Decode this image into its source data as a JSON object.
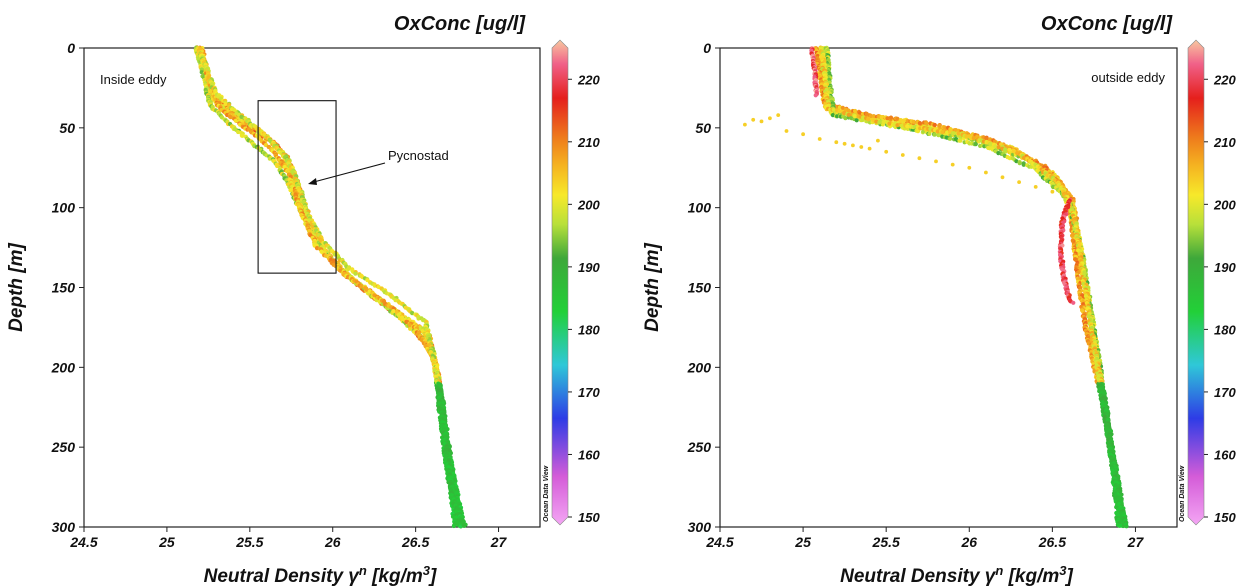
{
  "chart_data": [
    {
      "type": "scatter",
      "panel": "left",
      "title": "OxConc [ug/l]",
      "xlabel_main": "Neutral Density γ",
      "xlabel_sup1": "n",
      "xlabel_mid": " [kg/m",
      "xlabel_sup2": "3",
      "xlabel_end": "]",
      "ylabel": "Depth [m]",
      "annotation": "Inside eddy",
      "pycnostad_label": "Pycnostad",
      "pycnostad_box": {
        "x": [
          25.55,
          26.02
        ],
        "y": [
          33,
          141
        ]
      },
      "xlim": [
        24.5,
        27.25
      ],
      "ylim": [
        0,
        300
      ],
      "y_inverted": true,
      "xticks": [
        "24.5",
        "25",
        "25.5",
        "26",
        "26.5",
        "27"
      ],
      "yticks": [
        "0",
        "50",
        "100",
        "150",
        "200",
        "250",
        "300"
      ],
      "colorbar": {
        "label": "OxConc [ug/l]",
        "range": [
          150,
          225
        ],
        "ticks": [
          "150",
          "160",
          "170",
          "180",
          "190",
          "200",
          "210",
          "220"
        ]
      },
      "watermark": "Ocean Data View",
      "profiles": [
        {
          "oxygen": 206,
          "points": [
            [
              25.18,
              0
            ],
            [
              25.22,
              12
            ],
            [
              25.28,
              30
            ],
            [
              25.45,
              45
            ],
            [
              25.62,
              57
            ],
            [
              25.72,
              68
            ],
            [
              25.78,
              82
            ],
            [
              25.82,
              98
            ],
            [
              25.88,
              115
            ],
            [
              25.98,
              132
            ],
            [
              26.15,
              148
            ],
            [
              26.38,
              165
            ],
            [
              26.58,
              180
            ],
            [
              26.64,
              210
            ],
            [
              26.68,
              250
            ],
            [
              26.72,
              280
            ],
            [
              26.76,
              300
            ]
          ]
        },
        {
          "oxygen": 209,
          "points": [
            [
              25.19,
              0
            ],
            [
              25.22,
              14
            ],
            [
              25.3,
              35
            ],
            [
              25.48,
              48
            ],
            [
              25.65,
              60
            ],
            [
              25.74,
              72
            ],
            [
              25.8,
              90
            ],
            [
              25.84,
              104
            ],
            [
              25.92,
              122
            ],
            [
              26.05,
              140
            ],
            [
              26.25,
              156
            ],
            [
              26.45,
              172
            ],
            [
              26.6,
              190
            ],
            [
              26.65,
              215
            ],
            [
              26.69,
              255
            ],
            [
              26.74,
              300
            ]
          ]
        },
        {
          "oxygen": 201,
          "points": [
            [
              25.2,
              0
            ],
            [
              25.24,
              18
            ],
            [
              25.27,
              32
            ],
            [
              25.4,
              42
            ],
            [
              25.58,
              54
            ],
            [
              25.7,
              66
            ],
            [
              25.76,
              80
            ],
            [
              25.8,
              96
            ],
            [
              25.86,
              112
            ],
            [
              25.96,
              128
            ],
            [
              26.12,
              145
            ],
            [
              26.32,
              160
            ],
            [
              26.54,
              176
            ],
            [
              26.62,
              200
            ],
            [
              26.66,
              240
            ],
            [
              26.7,
              270
            ],
            [
              26.78,
              300
            ]
          ]
        },
        {
          "oxygen": 197,
          "points": [
            [
              25.18,
              0
            ],
            [
              25.22,
              16
            ],
            [
              25.26,
              36
            ],
            [
              25.38,
              48
            ],
            [
              25.52,
              60
            ],
            [
              25.66,
              72
            ],
            [
              25.74,
              86
            ],
            [
              25.8,
              100
            ],
            [
              25.88,
              118
            ],
            [
              26.02,
              136
            ],
            [
              26.2,
              152
            ],
            [
              26.42,
              170
            ],
            [
              26.6,
              188
            ],
            [
              26.66,
              220
            ],
            [
              26.7,
              260
            ],
            [
              26.77,
              300
            ]
          ]
        },
        {
          "oxygen": 204,
          "points": [
            [
              25.21,
              0
            ],
            [
              25.25,
              20
            ],
            [
              25.32,
              38
            ],
            [
              25.5,
              52
            ],
            [
              25.64,
              64
            ],
            [
              25.72,
              76
            ],
            [
              25.78,
              92
            ],
            [
              25.83,
              108
            ],
            [
              25.9,
              124
            ],
            [
              26.08,
              142
            ],
            [
              26.3,
              158
            ],
            [
              26.5,
              176
            ],
            [
              26.62,
              196
            ],
            [
              26.67,
              230
            ],
            [
              26.72,
              265
            ],
            [
              26.79,
              300
            ]
          ]
        },
        {
          "oxygen": 199,
          "points": [
            [
              25.19,
              0
            ],
            [
              25.23,
              10
            ],
            [
              25.29,
              28
            ],
            [
              25.42,
              40
            ],
            [
              25.6,
              55
            ],
            [
              25.73,
              70
            ],
            [
              25.8,
              88
            ],
            [
              25.85,
              104
            ],
            [
              25.93,
              120
            ],
            [
              26.1,
              138
            ],
            [
              26.34,
              154
            ],
            [
              26.56,
              172
            ],
            [
              26.63,
              205
            ],
            [
              26.68,
              245
            ],
            [
              26.73,
              285
            ],
            [
              26.8,
              300
            ]
          ]
        }
      ],
      "deep_oxygen": 185
    },
    {
      "type": "scatter",
      "panel": "right",
      "title": "OxConc [ug/l]",
      "xlabel_main": "Neutral Density γ",
      "xlabel_sup1": "n",
      "xlabel_mid": " [kg/m",
      "xlabel_sup2": "3",
      "xlabel_end": "]",
      "ylabel": "Depth [m]",
      "annotation": "outside eddy",
      "xlim": [
        24.5,
        27.25
      ],
      "ylim": [
        0,
        300
      ],
      "y_inverted": true,
      "xticks": [
        "24.5",
        "25",
        "25.5",
        "26",
        "26.5",
        "27"
      ],
      "yticks": [
        "0",
        "50",
        "100",
        "150",
        "200",
        "250",
        "300"
      ],
      "colorbar": {
        "label": "OxConc [ug/l]",
        "range": [
          150,
          225
        ],
        "ticks": [
          "150",
          "160",
          "170",
          "180",
          "190",
          "200",
          "210",
          "220"
        ]
      },
      "watermark": "Ocean Data View",
      "profiles": [
        {
          "oxygen": 203,
          "points": [
            [
              25.1,
              0
            ],
            [
              25.12,
              20
            ],
            [
              25.14,
              38
            ],
            [
              25.5,
              44
            ],
            [
              25.9,
              52
            ],
            [
              26.25,
              62
            ],
            [
              26.5,
              78
            ],
            [
              26.62,
              95
            ],
            [
              26.66,
              120
            ],
            [
              26.72,
              160
            ],
            [
              26.78,
              200
            ],
            [
              26.84,
              240
            ],
            [
              26.88,
              270
            ],
            [
              26.93,
              300
            ]
          ]
        },
        {
          "oxygen": 198,
          "points": [
            [
              25.12,
              0
            ],
            [
              25.14,
              25
            ],
            [
              25.16,
              40
            ],
            [
              25.6,
              48
            ],
            [
              26.05,
              58
            ],
            [
              26.35,
              70
            ],
            [
              26.56,
              88
            ],
            [
              26.64,
              110
            ],
            [
              26.7,
              150
            ],
            [
              26.76,
              190
            ],
            [
              26.82,
              230
            ],
            [
              26.87,
              265
            ],
            [
              26.92,
              300
            ]
          ]
        },
        {
          "oxygen": 206,
          "points": [
            [
              25.08,
              0
            ],
            [
              25.1,
              15
            ],
            [
              25.13,
              35
            ],
            [
              25.4,
              42
            ],
            [
              25.8,
              48
            ],
            [
              26.15,
              58
            ],
            [
              26.45,
              74
            ],
            [
              26.6,
              92
            ],
            [
              26.64,
              130
            ],
            [
              26.7,
              175
            ],
            [
              26.8,
              220
            ],
            [
              26.86,
              260
            ],
            [
              26.9,
              300
            ]
          ]
        },
        {
          "oxygen": 195,
          "points": [
            [
              25.14,
              0
            ],
            [
              25.16,
              22
            ],
            [
              25.18,
              42
            ],
            [
              25.7,
              52
            ],
            [
              26.1,
              62
            ],
            [
              26.4,
              76
            ],
            [
              26.6,
              95
            ],
            [
              26.68,
              130
            ],
            [
              26.74,
              170
            ],
            [
              26.8,
              210
            ],
            [
              26.86,
              250
            ],
            [
              26.94,
              300
            ]
          ]
        },
        {
          "oxygen": 201,
          "points": [
            [
              25.11,
              0
            ],
            [
              25.13,
              18
            ],
            [
              25.15,
              38
            ],
            [
              25.45,
              46
            ],
            [
              25.95,
              54
            ],
            [
              26.3,
              66
            ],
            [
              26.54,
              84
            ],
            [
              26.63,
              105
            ],
            [
              26.69,
              145
            ],
            [
              26.75,
              185
            ],
            [
              26.83,
              235
            ],
            [
              26.89,
              280
            ],
            [
              26.95,
              300
            ]
          ]
        }
      ],
      "red_segment": {
        "oxygen": 218,
        "points": [
          [
            26.6,
            95
          ],
          [
            26.56,
            110
          ],
          [
            26.55,
            130
          ],
          [
            26.58,
            150
          ],
          [
            26.62,
            160
          ]
        ]
      },
      "top_red": {
        "oxygen": 220,
        "points": [
          [
            25.05,
            0
          ],
          [
            25.07,
            15
          ],
          [
            25.08,
            30
          ]
        ]
      },
      "outliers": [
        [
          24.65,
          48
        ],
        [
          24.7,
          45
        ],
        [
          24.75,
          46
        ],
        [
          24.8,
          44
        ],
        [
          24.85,
          42
        ],
        [
          24.9,
          52
        ],
        [
          25.0,
          54
        ],
        [
          25.1,
          57
        ],
        [
          25.2,
          59
        ],
        [
          25.3,
          61
        ],
        [
          25.4,
          63
        ],
        [
          25.5,
          65
        ],
        [
          25.6,
          67
        ],
        [
          25.7,
          69
        ],
        [
          25.8,
          71
        ],
        [
          25.9,
          73
        ],
        [
          26.0,
          75
        ],
        [
          26.1,
          78
        ],
        [
          26.2,
          81
        ],
        [
          26.3,
          84
        ],
        [
          26.4,
          87
        ],
        [
          26.5,
          90
        ],
        [
          25.25,
          60
        ],
        [
          25.35,
          62
        ],
        [
          25.45,
          58
        ]
      ],
      "outlier_oxygen": 202,
      "deep_oxygen": 186
    }
  ]
}
